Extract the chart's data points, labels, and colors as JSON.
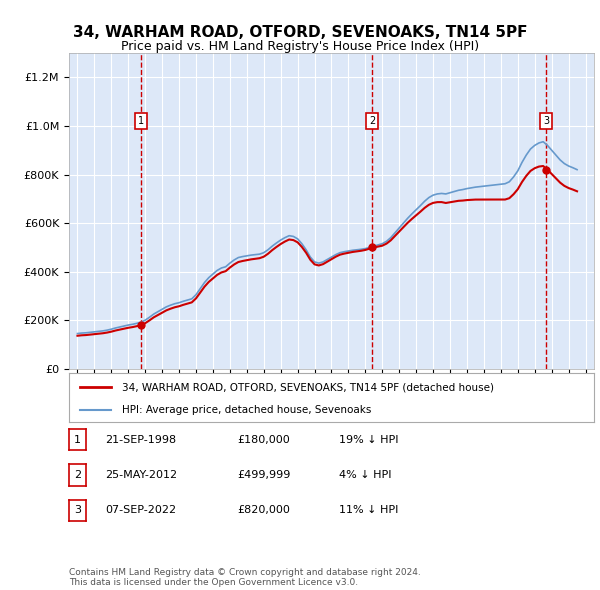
{
  "title": "34, WARHAM ROAD, OTFORD, SEVENOAKS, TN14 5PF",
  "subtitle": "Price paid vs. HM Land Registry's House Price Index (HPI)",
  "bg_color": "#dde8f8",
  "sale_dates_num": [
    1998.73,
    2012.39,
    2022.68
  ],
  "sale_prices": [
    180000,
    499999,
    820000
  ],
  "sale_labels": [
    "1",
    "2",
    "3"
  ],
  "legend_line1": "34, WARHAM ROAD, OTFORD, SEVENOAKS, TN14 5PF (detached house)",
  "legend_line2": "HPI: Average price, detached house, Sevenoaks",
  "table_data": [
    [
      "1",
      "21-SEP-1998",
      "£180,000",
      "19% ↓ HPI"
    ],
    [
      "2",
      "25-MAY-2012",
      "£499,999",
      "4% ↓ HPI"
    ],
    [
      "3",
      "07-SEP-2022",
      "£820,000",
      "11% ↓ HPI"
    ]
  ],
  "footer": "Contains HM Land Registry data © Crown copyright and database right 2024.\nThis data is licensed under the Open Government Licence v3.0.",
  "red_color": "#cc0000",
  "blue_color": "#6699cc",
  "ylim": [
    0,
    1300000
  ],
  "xlim_start": 1994.5,
  "xlim_end": 2025.5
}
